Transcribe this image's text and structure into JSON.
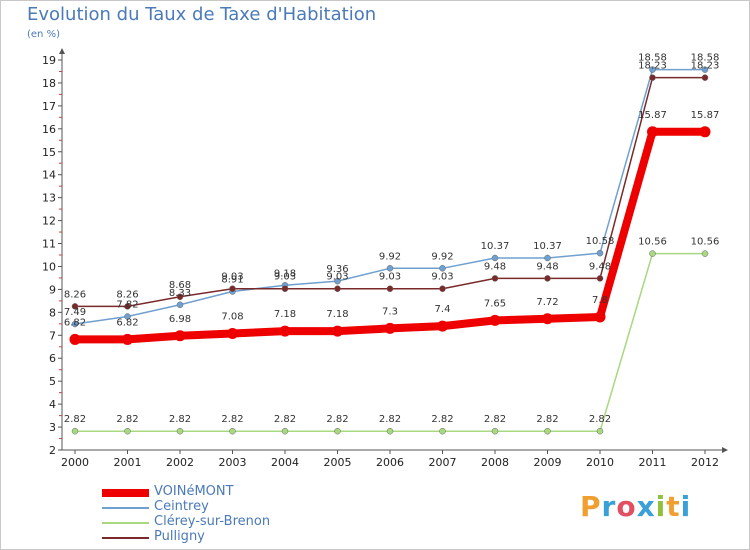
{
  "title": "Evolution du Taux de Taxe d'Habitation",
  "unit": "(en %)",
  "brand": {
    "letters": [
      "P",
      "r",
      "o",
      "x",
      "i",
      "t",
      "i"
    ],
    "colors": [
      "#f0a030",
      "#3aa0d8",
      "#e05060",
      "#3aa0d8",
      "#90c040",
      "#f0a030",
      "#3aa0d8"
    ]
  },
  "chart_data": {
    "type": "line",
    "title": "Evolution du Taux de Taxe d'Habitation",
    "ylabel": "(en %)",
    "x": [
      "2000",
      "2001",
      "2002",
      "2003",
      "2004",
      "2005",
      "2006",
      "2007",
      "2008",
      "2009",
      "2010",
      "2011",
      "2012"
    ],
    "ylim": [
      2,
      19
    ],
    "yticks": [
      "2",
      "3",
      "4",
      "5",
      "6",
      "7",
      "8",
      "9",
      "10",
      "11",
      "12",
      "13",
      "14",
      "15",
      "16",
      "17",
      "18",
      "19"
    ],
    "grid": false,
    "legend": "bottom-left",
    "series": [
      {
        "name": "Ceintrey",
        "color": "#6fa0d0",
        "values": [
          7.49,
          7.82,
          8.33,
          8.91,
          9.18,
          9.36,
          9.92,
          9.92,
          10.37,
          10.37,
          10.58,
          18.58,
          18.58
        ],
        "labels": [
          "7.49",
          "7.82",
          "8.33",
          "8.91",
          "9.18",
          "9.36",
          "9.92",
          "9.92",
          "10.37",
          "10.37",
          "10.58",
          "18.58",
          "18.58"
        ]
      },
      {
        "name": "Pulligny",
        "color": "#7a2a2a",
        "values": [
          8.26,
          8.26,
          8.68,
          9.03,
          9.03,
          9.03,
          9.03,
          9.03,
          9.48,
          9.48,
          9.48,
          18.23,
          18.23
        ],
        "labels": [
          "8.26",
          "8.26",
          "8.68",
          "9.03",
          "9.03",
          "9.03",
          "9.03",
          "9.03",
          "9.48",
          "9.48",
          "9.48",
          "18.23",
          "18.23"
        ]
      },
      {
        "name": "Clérey-sur-Brenon",
        "color": "#a8d880",
        "values": [
          2.82,
          2.82,
          2.82,
          2.82,
          2.82,
          2.82,
          2.82,
          2.82,
          2.82,
          2.82,
          2.82,
          10.56,
          10.56
        ],
        "labels": [
          "2.82",
          "2.82",
          "2.82",
          "2.82",
          "2.82",
          "2.82",
          "2.82",
          "2.82",
          "2.82",
          "2.82",
          "2.82",
          "10.56",
          "10.56"
        ]
      },
      {
        "name": "VOINéMONT",
        "color": "#ee0000",
        "values": [
          6.82,
          6.82,
          6.98,
          7.08,
          7.18,
          7.18,
          7.3,
          7.4,
          7.65,
          7.72,
          7.8,
          15.87,
          15.87
        ],
        "labels": [
          "6.82",
          "6.82",
          "6.98",
          "7.08",
          "7.18",
          "7.18",
          "7.3",
          "7.4",
          "7.65",
          "7.72",
          "7.8",
          "15.87",
          "15.87"
        ]
      }
    ],
    "legend_order": [
      "VOINéMONT",
      "Ceintrey",
      "Clérey-sur-Brenon",
      "Pulligny"
    ]
  }
}
